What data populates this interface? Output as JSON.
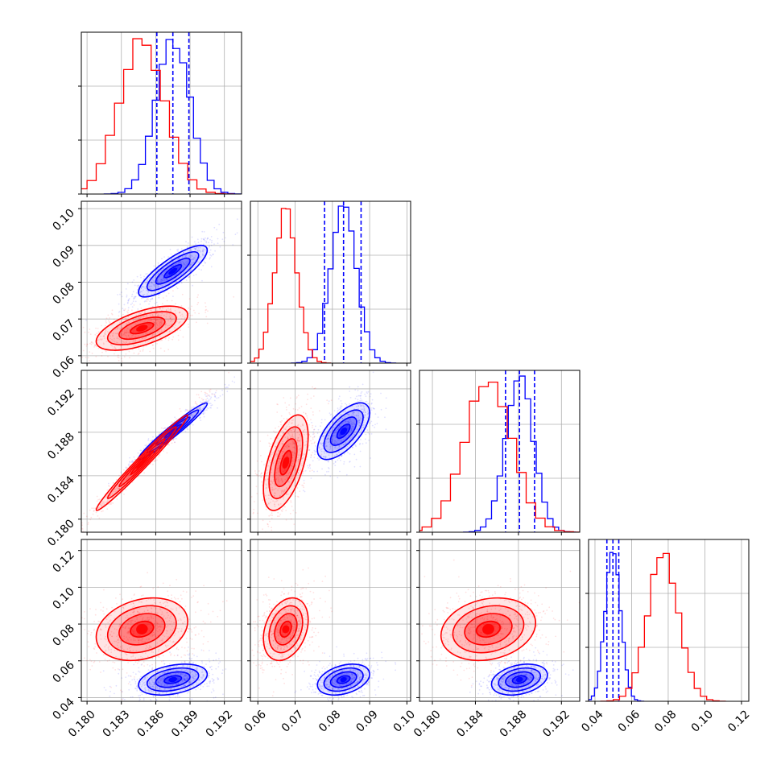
{
  "colors": {
    "blue": "#0000ff",
    "red": "#ff0000",
    "grid": "#b0b0b0",
    "frame": "#000000"
  },
  "chart_data": {
    "type": "corner",
    "title": "",
    "grid": true,
    "series": [
      {
        "color": "#0000ff",
        "means": [
          0.1875,
          0.083,
          0.1881,
          0.0498
        ],
        "sds": [
          0.0015,
          0.0035,
          0.0013,
          0.0042
        ],
        "quantile_lines": [
          [
            0.1861,
            0.1875,
            0.1889
          ],
          [
            0.0779,
            0.083,
            0.0877
          ],
          [
            0.1868,
            0.1881,
            0.1895
          ],
          [
            0.0465,
            0.0498,
            0.053
          ]
        ]
      },
      {
        "color": "#ff0000",
        "means": [
          0.1848,
          0.0675,
          0.1852,
          0.0772
        ],
        "sds": [
          0.002,
          0.003,
          0.0022,
          0.0085
        ],
        "quantile_lines": []
      }
    ],
    "panels": [
      {
        "row": 0,
        "col": 0,
        "type": "histogram",
        "xlim": [
          0.1795,
          0.1935
        ],
        "ylim": [
          0,
          1.05
        ]
      },
      {
        "row": 1,
        "col": 0,
        "type": "2d",
        "xlim": [
          0.1795,
          0.1935
        ],
        "ylim": [
          0.058,
          0.102
        ],
        "yticks": [
          "0.06",
          "0.07",
          "0.08",
          "0.09",
          "0.10"
        ]
      },
      {
        "row": 1,
        "col": 1,
        "type": "histogram",
        "xlim": [
          0.058,
          0.101
        ],
        "ylim": [
          0,
          1.05
        ]
      },
      {
        "row": 2,
        "col": 0,
        "type": "2d",
        "xlim": [
          0.1795,
          0.1935
        ],
        "ylim": [
          0.1788,
          0.1937
        ],
        "yticks": [
          "0.180",
          "0.184",
          "0.188",
          "0.192"
        ]
      },
      {
        "row": 2,
        "col": 1,
        "type": "2d",
        "xlim": [
          0.058,
          0.101
        ],
        "ylim": [
          0.1788,
          0.1937
        ]
      },
      {
        "row": 2,
        "col": 2,
        "type": "histogram",
        "xlim": [
          0.1788,
          0.1937
        ],
        "ylim": [
          0,
          1.05
        ]
      },
      {
        "row": 3,
        "col": 0,
        "type": "2d",
        "xlim": [
          0.1795,
          0.1935
        ],
        "ylim": [
          0.038,
          0.126
        ],
        "yticks": [
          "0.04",
          "0.06",
          "0.08",
          "0.10",
          "0.12"
        ],
        "xticks": [
          "0.180",
          "0.183",
          "0.186",
          "0.189",
          "0.192"
        ]
      },
      {
        "row": 3,
        "col": 1,
        "type": "2d",
        "xlim": [
          0.058,
          0.101
        ],
        "ylim": [
          0.038,
          0.126
        ],
        "xticks": [
          "0.06",
          "0.07",
          "0.08",
          "0.09",
          "0.10"
        ]
      },
      {
        "row": 3,
        "col": 2,
        "type": "2d",
        "xlim": [
          0.1788,
          0.1937
        ],
        "ylim": [
          0.038,
          0.126
        ],
        "xticks": [
          "0.180",
          "0.184",
          "0.188",
          "0.192"
        ]
      },
      {
        "row": 3,
        "col": 3,
        "type": "histogram",
        "xlim": [
          0.0365,
          0.124
        ],
        "ylim": [
          0,
          1.05
        ],
        "xticks": [
          "0.04",
          "0.06",
          "0.08",
          "0.10",
          "0.12"
        ]
      }
    ]
  }
}
